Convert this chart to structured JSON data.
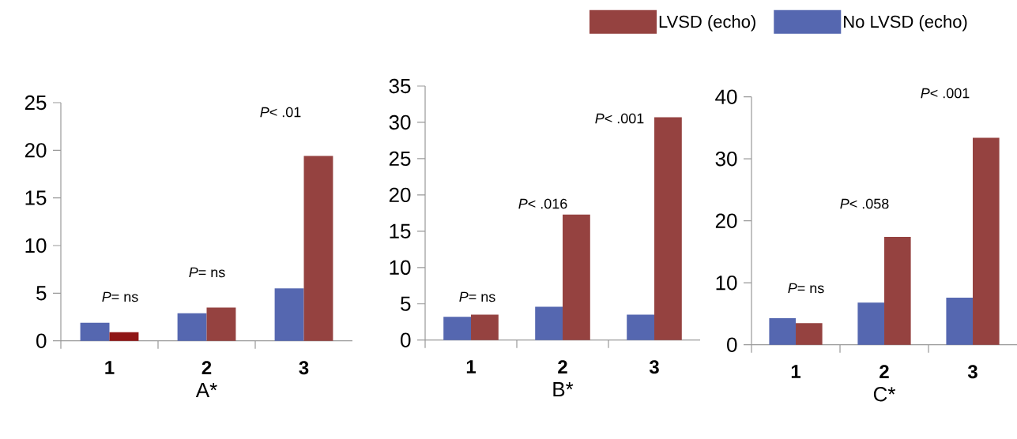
{
  "chart_data": [
    {
      "type": "bar",
      "xlabel": "A*",
      "categories": [
        "1",
        "2",
        "3"
      ],
      "ylim": [
        0,
        25
      ],
      "yticks": [
        0,
        5,
        10,
        15,
        20,
        25
      ],
      "series": [
        {
          "color": "#5567b0",
          "values": [
            1.9,
            2.9,
            5.5
          ]
        },
        {
          "colors": [
            "#8f1515",
            "#954240",
            "#954240"
          ],
          "values": [
            0.9,
            3.5,
            19.4
          ]
        }
      ],
      "annotations": [
        "*P*= ns",
        "*P*= ns",
        "*P*< .01"
      ]
    },
    {
      "type": "bar",
      "xlabel": "B*",
      "categories": [
        "1",
        "2",
        "3"
      ],
      "ylim": [
        0,
        35
      ],
      "yticks": [
        0,
        5,
        10,
        15,
        20,
        25,
        30,
        35
      ],
      "legend": "top right",
      "series": [
        {
          "name": "No LVSD (echo)",
          "color": "#5567b0",
          "values": [
            3.2,
            4.6,
            3.5
          ]
        },
        {
          "name": "LVSD (echo)",
          "color": "#954240",
          "values": [
            3.5,
            17.3,
            30.7
          ]
        }
      ],
      "annotations": [
        "*P*= ns",
        "*P*< .016",
        "*P*< .001"
      ]
    },
    {
      "type": "bar",
      "xlabel": "C*",
      "categories": [
        "1",
        "2",
        "3"
      ],
      "ylim": [
        0,
        40
      ],
      "yticks": [
        0,
        10,
        20,
        30,
        40
      ],
      "series": [
        {
          "color": "#5567b0",
          "values": [
            4.3,
            6.8,
            7.6
          ]
        },
        {
          "color": "#954240",
          "values": [
            3.5,
            17.4,
            33.4
          ]
        }
      ],
      "annotations": [
        "*P*= ns",
        "*P*< .058",
        "*P*< .001"
      ]
    }
  ]
}
